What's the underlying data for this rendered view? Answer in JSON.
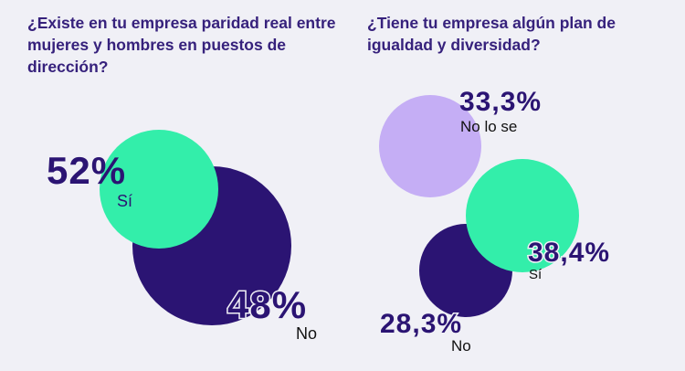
{
  "colors": {
    "background": "#f0f0f6",
    "dark_purple": "#2b1473",
    "mint_green": "#33eeaa",
    "lavender": "#c5aef5",
    "text_dark": "#2b1473"
  },
  "chart_data": [
    {
      "type": "bubble",
      "title": "¿Existe en tu empresa paridad real entre mujeres y hombres en puestos de dirección?",
      "categories": [
        "Sí",
        "No"
      ],
      "values": [
        52,
        48
      ],
      "value_labels": [
        "52%",
        "48%"
      ],
      "series_colors": [
        "#33eeaa",
        "#2b1473"
      ]
    },
    {
      "type": "bubble",
      "title": "¿Tiene tu empresa algún plan de igualdad y diversidad?",
      "categories": [
        "No lo se",
        "Sí",
        "No"
      ],
      "values": [
        33.3,
        38.4,
        28.3
      ],
      "value_labels": [
        "33,3%",
        "38,4%",
        "28,3%"
      ],
      "series_colors": [
        "#c5aef5",
        "#33eeaa",
        "#2b1473"
      ]
    }
  ]
}
